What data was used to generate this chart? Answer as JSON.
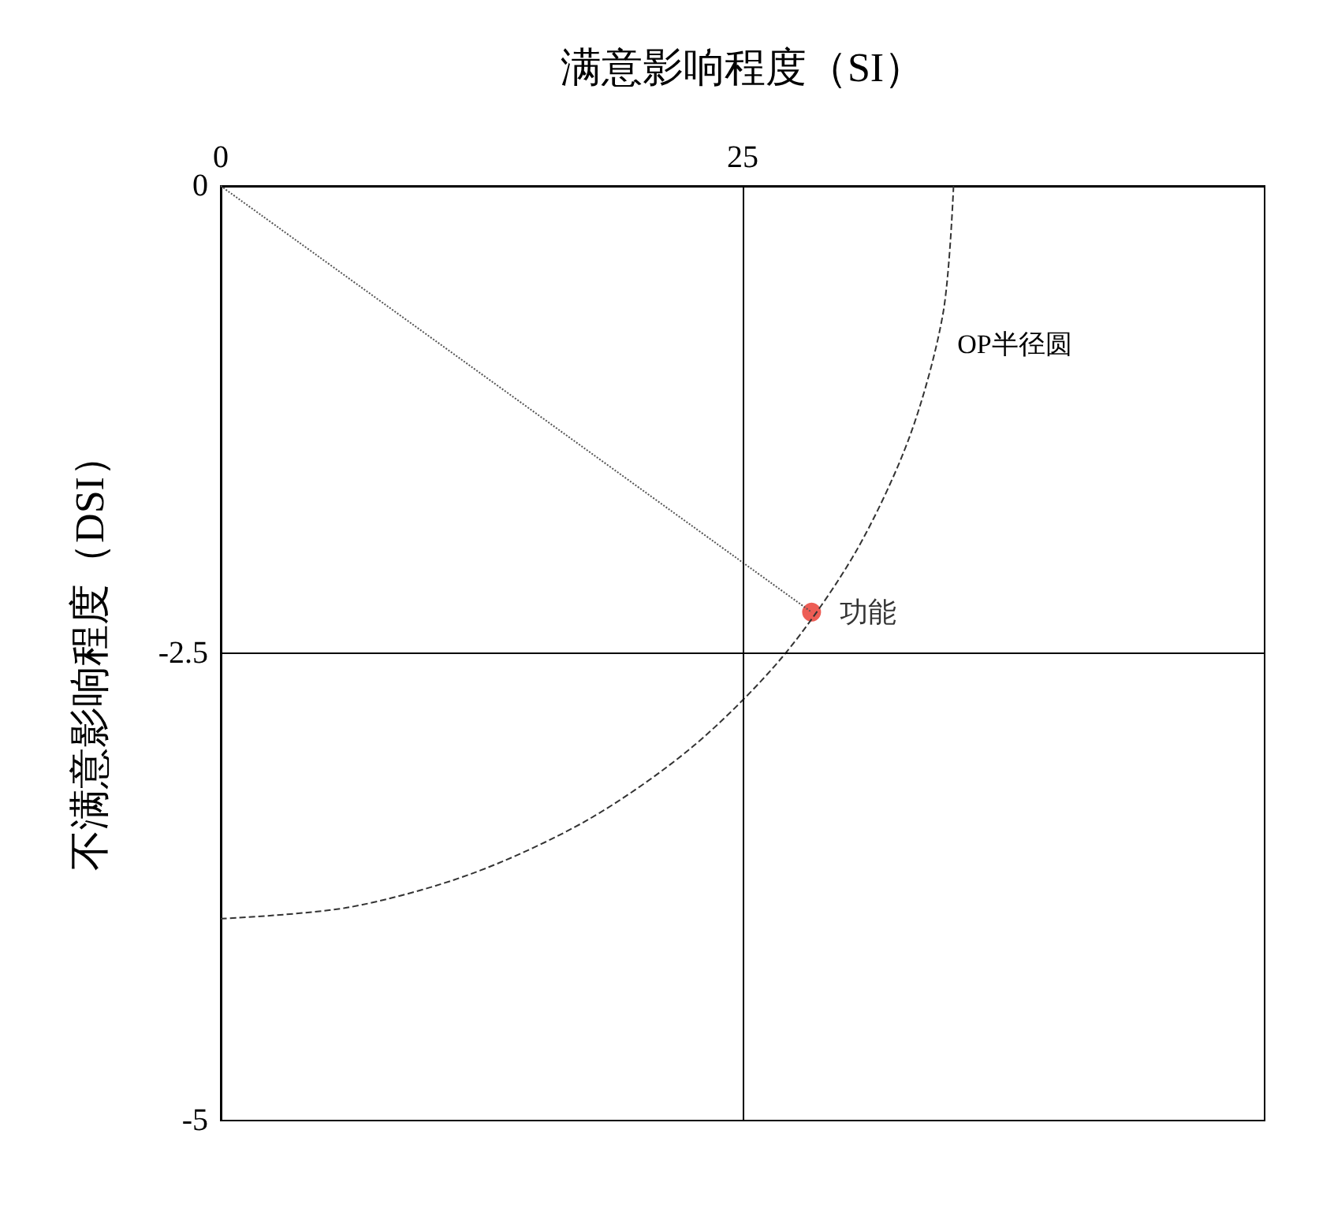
{
  "chart_data": {
    "type": "scatter",
    "xlabel": "满意影响程度（SI）",
    "ylabel": "不满意影响程度（DSI）",
    "xlim": [
      0,
      50
    ],
    "xticks": [
      0,
      25
    ],
    "ylim": [
      -5,
      0
    ],
    "yticks": [
      0,
      -2.5,
      -5
    ],
    "grid": false,
    "legend": false,
    "series": [
      {
        "type": "line",
        "color": "#555555",
        "line_style": "dotted",
        "marker": "none",
        "x": [
          0,
          28.3
        ],
        "values": [
          0,
          -2.28
        ]
      },
      {
        "type": "line",
        "name": "OP半径圆",
        "color": "#333333",
        "line_style": "dashed",
        "marker": "none",
        "x": [
          35.1,
          34.6,
          33.0,
          30.4,
          26.9,
          22.6,
          17.6,
          12.0,
          6.1,
          0
        ],
        "values": [
          0,
          -0.68,
          -1.34,
          -1.96,
          -2.52,
          -3.0,
          -3.39,
          -3.68,
          -3.86,
          -3.92
        ]
      },
      {
        "type": "scatter",
        "name": "功能",
        "color": "#e8352b",
        "marker": "circle",
        "x": [
          28.3
        ],
        "values": [
          -2.28
        ]
      }
    ],
    "ref_lines": [
      {
        "axis": "x",
        "value": 25,
        "color": "#000000",
        "line_style": "solid"
      },
      {
        "axis": "y",
        "value": -2.5,
        "color": "#000000",
        "line_style": "solid"
      }
    ]
  }
}
